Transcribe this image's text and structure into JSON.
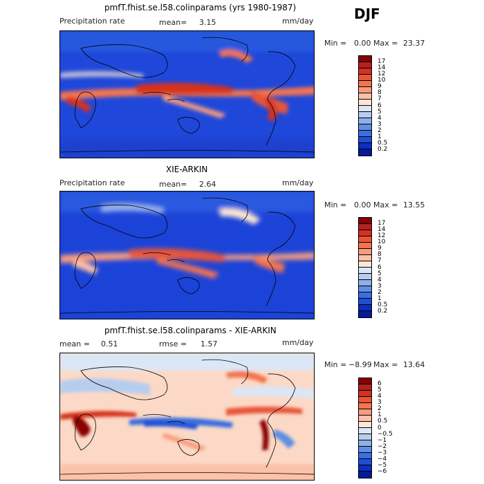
{
  "season": "DJF",
  "panels": [
    {
      "title": "pmfT.fhist.se.l58.colinparams (yrs 1980-1987)",
      "left_label": "Precipitation rate",
      "stat1_label": "mean=",
      "stat1_value": "3.15",
      "units": "mm/day",
      "min_label": "Min =",
      "min_value": "0.00",
      "max_label": "Max =",
      "max_value": "23.37",
      "colorbar": {
        "levels": [
          "17",
          "14",
          "12",
          "10",
          "9",
          "8",
          "7",
          "6",
          "5",
          "4",
          "3",
          "2",
          "1",
          "0.5",
          "0.2"
        ],
        "colors": [
          "#8b0000",
          "#b22222",
          "#d7301f",
          "#e8553a",
          "#f4744f",
          "#f99c7e",
          "#fcc1a9",
          "#fde6d2",
          "#dbe7f6",
          "#b6cdf0",
          "#8db0ea",
          "#5f8fe2",
          "#3b6ee0",
          "#1f4fd8",
          "#0b2fc5",
          "#061a9c"
        ]
      }
    },
    {
      "title": "XIE-ARKIN",
      "left_label": "Precipitation rate",
      "stat1_label": "mean=",
      "stat1_value": "2.64",
      "units": "mm/day",
      "min_label": "Min =",
      "min_value": "0.00",
      "max_label": "Max =",
      "max_value": "13.55",
      "colorbar": {
        "levels": [
          "17",
          "14",
          "12",
          "10",
          "9",
          "8",
          "7",
          "6",
          "5",
          "4",
          "3",
          "2",
          "1",
          "0.5",
          "0.2"
        ],
        "colors": [
          "#8b0000",
          "#b22222",
          "#d7301f",
          "#e8553a",
          "#f4744f",
          "#f99c7e",
          "#fcc1a9",
          "#fde6d2",
          "#dbe7f6",
          "#b6cdf0",
          "#8db0ea",
          "#5f8fe2",
          "#3b6ee0",
          "#1f4fd8",
          "#0b2fc5",
          "#061a9c"
        ]
      }
    },
    {
      "title": "pmfT.fhist.se.l58.colinparams - XIE-ARKIN",
      "stat1_label": "mean =",
      "stat1_value": "0.51",
      "stat2_label": "rmse =",
      "stat2_value": "1.57",
      "units": "mm/day",
      "min_label": "Min =",
      "min_value": "−8.99",
      "max_label": "Max =",
      "max_value": "13.64",
      "colorbar": {
        "levels": [
          "6",
          "5",
          "4",
          "3",
          "2",
          "1",
          "0.5",
          "0",
          "−0.5",
          "−1",
          "−2",
          "−3",
          "−4",
          "−5",
          "−6"
        ],
        "colors": [
          "#8b0000",
          "#b22222",
          "#d7301f",
          "#e8553a",
          "#f4744f",
          "#f99c7e",
          "#fcc1a9",
          "#fde6d2",
          "#dbe7f6",
          "#b6cdf0",
          "#8db0ea",
          "#5f8fe2",
          "#3b6ee0",
          "#1f4fd8",
          "#0b2fc5",
          "#061a9c"
        ]
      }
    }
  ]
}
